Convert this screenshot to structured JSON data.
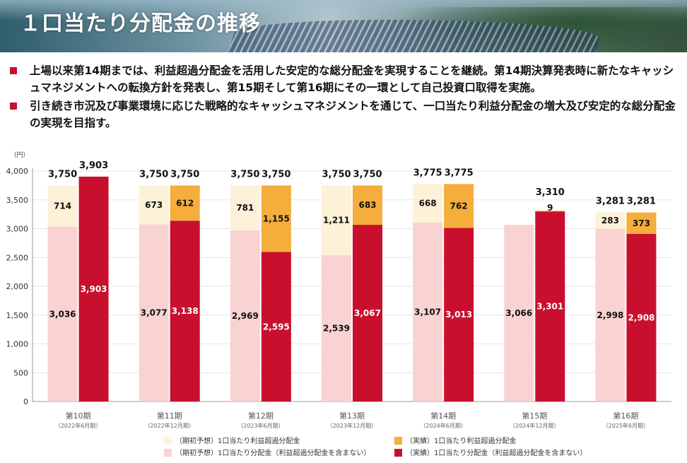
{
  "header": {
    "title": "１口当たり分配金の推移"
  },
  "bullets": [
    {
      "text": "上場以来第14期までは、利益超過分配金を活用した安定的な総分配金を実現することを継続。第14期決算発表時に新たなキャッシュマネジメントへの転換方針を発表し、第15期そして第16期にその一環として自己投資口取得を実施。"
    },
    {
      "text": "引き続き市況及び事業環境に応じた戦略的なキャッシュマネジメントを通じて、一口当たり利益分配金の増大及び安定的な総分配金の実現を目指す。"
    }
  ],
  "colors": {
    "forecast_excess": "#fdf1d8",
    "forecast_base": "#f9d2d2",
    "actual_excess": "#f5ad3c",
    "actual_base": "#c8102e",
    "accent": "#c8102e"
  },
  "chart_data": {
    "type": "bar",
    "yunit": "（円）",
    "ylim": [
      0,
      4000
    ],
    "yticks": [
      "0",
      "500",
      "1,000",
      "1,500",
      "2,000",
      "2,500",
      "3,000",
      "3,500",
      "4,000"
    ],
    "periods": [
      {
        "label": "第10期",
        "sub": "（2022年6月期）",
        "forecast": {
          "base": 3036,
          "excess": 714,
          "total": 3750,
          "base_label": "3,036",
          "excess_label": "714",
          "total_label": "3,750"
        },
        "actual": {
          "base": 3903,
          "excess": 0,
          "total": 3903,
          "base_label": "3,903",
          "excess_label": "",
          "total_label": "3,903"
        }
      },
      {
        "label": "第11期",
        "sub": "（2022年12月期）",
        "forecast": {
          "base": 3077,
          "excess": 673,
          "total": 3750,
          "base_label": "3,077",
          "excess_label": "673",
          "total_label": "3,750"
        },
        "actual": {
          "base": 3138,
          "excess": 612,
          "total": 3750,
          "base_label": "3,138",
          "excess_label": "612",
          "total_label": "3,750"
        }
      },
      {
        "label": "第12期",
        "sub": "（2023年6月期）",
        "forecast": {
          "base": 2969,
          "excess": 781,
          "total": 3750,
          "base_label": "2,969",
          "excess_label": "781",
          "total_label": "3,750"
        },
        "actual": {
          "base": 2595,
          "excess": 1155,
          "total": 3750,
          "base_label": "2,595",
          "excess_label": "1,155",
          "total_label": "3,750"
        }
      },
      {
        "label": "第13期",
        "sub": "（2023年12月期）",
        "forecast": {
          "base": 2539,
          "excess": 1211,
          "total": 3750,
          "base_label": "2,539",
          "excess_label": "1,211",
          "total_label": "3,750"
        },
        "actual": {
          "base": 3067,
          "excess": 683,
          "total": 3750,
          "base_label": "3,067",
          "excess_label": "683",
          "total_label": "3,750"
        }
      },
      {
        "label": "第14期",
        "sub": "（2024年6月期）",
        "forecast": {
          "base": 3107,
          "excess": 668,
          "total": 3775,
          "base_label": "3,107",
          "excess_label": "668",
          "total_label": "3,775"
        },
        "actual": {
          "base": 3013,
          "excess": 762,
          "total": 3775,
          "base_label": "3,013",
          "excess_label": "762",
          "total_label": "3,775"
        }
      },
      {
        "label": "第15期",
        "sub": "（2024年12月期）",
        "forecast": {
          "base": 3066,
          "excess": 0,
          "total": 3066,
          "base_label": "3,066",
          "excess_label": "",
          "total_label": ""
        },
        "actual": {
          "base": 3301,
          "excess": 9,
          "total": 3310,
          "base_label": "3,301",
          "excess_label": "9",
          "total_label": "3,310"
        }
      },
      {
        "label": "第16期",
        "sub": "（2025年6月期）",
        "forecast": {
          "base": 2998,
          "excess": 283,
          "total": 3281,
          "base_label": "2,998",
          "excess_label": "283",
          "total_label": "3,281"
        },
        "actual": {
          "base": 2908,
          "excess": 373,
          "total": 3281,
          "base_label": "2,908",
          "excess_label": "373",
          "total_label": "3,281"
        }
      }
    ],
    "legend": {
      "forecast_excess": "（期初予想）1口当たり利益超過分配金",
      "actual_excess": "（実績）1口当たり利益超過分配金",
      "forecast_base": "（期初予想）1口当たり分配金（利益超過分配金を含まない）",
      "actual_base": "（実績）1口当たり分配金（利益超過分配金を含まない）"
    }
  }
}
